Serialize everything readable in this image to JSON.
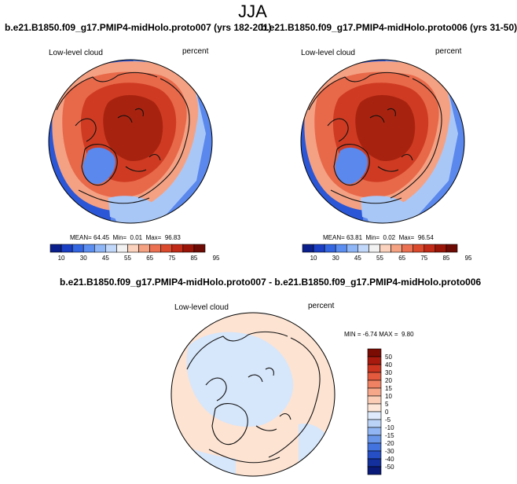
{
  "figure": {
    "title": "JJA"
  },
  "panels": [
    {
      "title": "b.e21.B1850.f09_g17.PMIP4-midHolo.proto007 (yrs 182-201)",
      "variable": "Low-level cloud",
      "units": "percent",
      "stats": {
        "mean_label": "MEAN=",
        "mean": "64.45",
        "min_label": "Min=",
        "min": "0.01",
        "max_label": "Max=",
        "max": "96.83"
      }
    },
    {
      "title": "b.e21.B1850.f09_g17.PMIP4-midHolo.proto006 (yrs 31-50)",
      "variable": "Low-level cloud",
      "units": "percent",
      "stats": {
        "mean_label": "MEAN=",
        "mean": "63.81",
        "min_label": "Min=",
        "min": "0.02",
        "max_label": "Max=",
        "max": "96.54"
      }
    },
    {
      "title": "b.e21.B1850.f09_g17.PMIP4-midHolo.proto007 - b.e21.B1850.f09_g17.PMIP4-midHolo.proto006",
      "variable": "Low-level cloud",
      "units": "percent",
      "stats": {
        "min_label": "MIN =",
        "min": "-6.74",
        "max_label": "MAX =",
        "max": "9.80"
      }
    }
  ],
  "colorbars": {
    "absolute": {
      "labels": [
        "10",
        "30",
        "45",
        "55",
        "65",
        "75",
        "85",
        "95"
      ],
      "colors": [
        "#0a1f8c",
        "#1b3fc4",
        "#3466e2",
        "#5b8ef0",
        "#8fb6f7",
        "#c2d8fa",
        "#f2f2f2",
        "#fbd2bd",
        "#f5a282",
        "#ec7152",
        "#db4a2c",
        "#c02a16",
        "#9a1508",
        "#6e0a04"
      ]
    },
    "difference": {
      "labels": [
        "50",
        "40",
        "30",
        "20",
        "15",
        "10",
        "5",
        "0",
        "-5",
        "-10",
        "-15",
        "-20",
        "-30",
        "-40",
        "-50"
      ],
      "colors": [
        "#7a0c04",
        "#a81a0d",
        "#cc3520",
        "#e35a3f",
        "#ef8262",
        "#f6a78a",
        "#fbcdb6",
        "#fde6d8",
        "#dfeafc",
        "#bcd3f8",
        "#92b6f3",
        "#6a96ea",
        "#4373de",
        "#264fc6",
        "#13309c",
        "#0a1a78"
      ]
    }
  },
  "map_colors": {
    "ocean_blue_deep": "#2b57d6",
    "ocean_blue": "#5a88ec",
    "ocean_blue_light": "#a9c7f6",
    "orange_light": "#f4a183",
    "orange": "#e8694a",
    "red": "#cf3b22",
    "red_dark": "#a8230f",
    "diff_pink": "#fde3d2",
    "diff_blue": "#d6e6fb",
    "coast": "#111111"
  }
}
